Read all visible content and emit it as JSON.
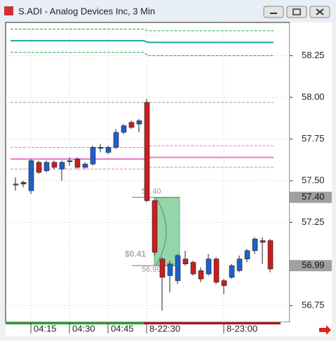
{
  "chart_data": {
    "type": "candlestick",
    "title": "S.ADI - Analog Devices Inc, 3 Min",
    "categories": [
      null,
      null,
      "04:15",
      null,
      null,
      null,
      null,
      "04:30",
      null,
      null,
      null,
      null,
      "04:45",
      null,
      null,
      null,
      null,
      "8-22:30",
      null,
      null,
      null,
      null,
      null,
      null,
      null,
      null,
      null,
      "8-23:00",
      null,
      null,
      null,
      null,
      null,
      null
    ],
    "open": [
      57.48,
      57.49,
      57.44,
      57.61,
      57.56,
      57.61,
      57.57,
      57.62,
      57.63,
      57.58,
      57.6,
      57.7,
      57.67,
      57.7,
      57.79,
      57.85,
      57.84,
      57.97,
      57.38,
      57.03,
      56.93,
      56.9,
      57.03,
      57.01,
      56.96,
      56.94,
      57.03,
      56.9,
      56.92,
      56.96,
      57.03,
      57.08,
      57.14,
      57.14
    ],
    "high": [
      57.52,
      57.5,
      57.63,
      57.62,
      57.62,
      57.62,
      57.62,
      57.64,
      57.64,
      57.61,
      57.71,
      57.72,
      57.71,
      57.81,
      57.84,
      57.86,
      57.87,
      57.99,
      57.39,
      57.04,
      57.02,
      57.06,
      57.08,
      57.02,
      56.98,
      57.06,
      57.04,
      56.91,
      57.0,
      57.05,
      57.09,
      57.16,
      57.16,
      57.15
    ],
    "low": [
      57.44,
      57.46,
      57.42,
      57.54,
      57.55,
      57.57,
      57.5,
      57.59,
      57.57,
      57.57,
      57.59,
      57.67,
      57.66,
      57.69,
      57.78,
      57.81,
      57.79,
      57.37,
      57.05,
      56.72,
      56.83,
      56.88,
      56.99,
      56.93,
      56.89,
      56.93,
      56.88,
      56.82,
      56.91,
      56.95,
      57.01,
      57.06,
      57.0,
      56.95
    ],
    "close": [
      57.48,
      57.48,
      57.62,
      57.55,
      57.61,
      57.58,
      57.61,
      57.62,
      57.58,
      57.6,
      57.7,
      57.7,
      57.7,
      57.79,
      57.83,
      57.82,
      57.86,
      57.38,
      57.07,
      56.92,
      57.0,
      57.05,
      57.0,
      56.94,
      56.91,
      57.03,
      56.89,
      56.87,
      56.99,
      57.03,
      57.08,
      57.15,
      57.13,
      56.97
    ],
    "up_color": "#1f5fc8",
    "down_color": "#c81e1e",
    "ylim": [
      56.65,
      58.45
    ],
    "yticks": [
      56.75,
      57.25,
      {
        "value": 57.5,
        "label": "57.50"
      },
      57.75,
      {
        "value": 58,
        "label": "58.00"
      },
      58.25
    ],
    "grid": true,
    "price_markers": [
      {
        "value": 57.4,
        "label": "57.40"
      },
      {
        "value": 56.99,
        "label": "56.99"
      }
    ],
    "overlay_lines": [
      {
        "values": [
          58.41,
          58.4
        ],
        "color": "#22aa44",
        "style": "dashed"
      },
      {
        "values": [
          58.34,
          58.33
        ],
        "color": "#1aa6a0",
        "style": "solid"
      },
      {
        "values": [
          58.27,
          58.25
        ],
        "color": "#22aa44",
        "style": "dashed"
      },
      {
        "values": [
          57.97,
          57.97
        ],
        "color": "#999999",
        "style": "dashed"
      },
      {
        "values": [
          57.7,
          57.71
        ],
        "color": "#e87bc8",
        "style": "dashed"
      },
      {
        "values": [
          57.63,
          57.64
        ],
        "color": "#e87bc8",
        "style": "solid"
      },
      {
        "values": [
          57.57,
          57.58
        ],
        "color": "#e87bc8",
        "style": "dashed"
      }
    ],
    "measure": {
      "high": {
        "value": 57.4,
        "label": "57.40"
      },
      "low": {
        "value": 56.99,
        "label": "56.99"
      },
      "change": "$0.41"
    }
  }
}
